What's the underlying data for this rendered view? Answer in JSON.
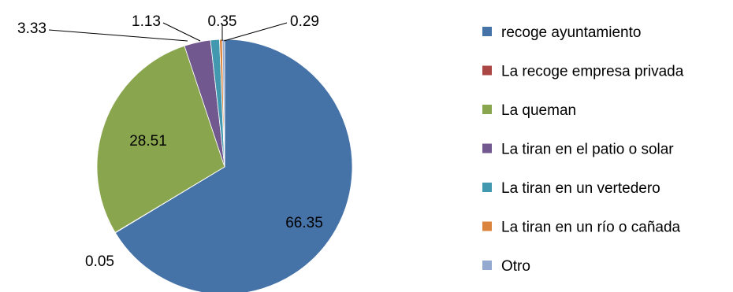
{
  "chart_data": {
    "type": "pie",
    "start_angle_deg": 0,
    "direction": "clockwise",
    "legend_position": "right",
    "slices": [
      {
        "label": "recoge ayuntamiento",
        "value": 66.35,
        "display": "66.35",
        "color": "#4572A7"
      },
      {
        "label": "La recoge empresa privada",
        "value": 0.05,
        "display": "0.05",
        "color": "#AA4643"
      },
      {
        "label": "La queman",
        "value": 28.51,
        "display": "28.51",
        "color": "#89A54E"
      },
      {
        "label": "La tiran en el patio o solar",
        "value": 3.33,
        "display": "3.33",
        "color": "#71588F"
      },
      {
        "label": "La tiran en un vertedero",
        "value": 1.13,
        "display": "1.13",
        "color": "#4198AF"
      },
      {
        "label": "La tiran en un río o cañada",
        "value": 0.35,
        "display": "0.35",
        "color": "#DB843D"
      },
      {
        "label": "Otro",
        "value": 0.29,
        "display": "0.29",
        "color": "#93A9CF"
      }
    ]
  }
}
